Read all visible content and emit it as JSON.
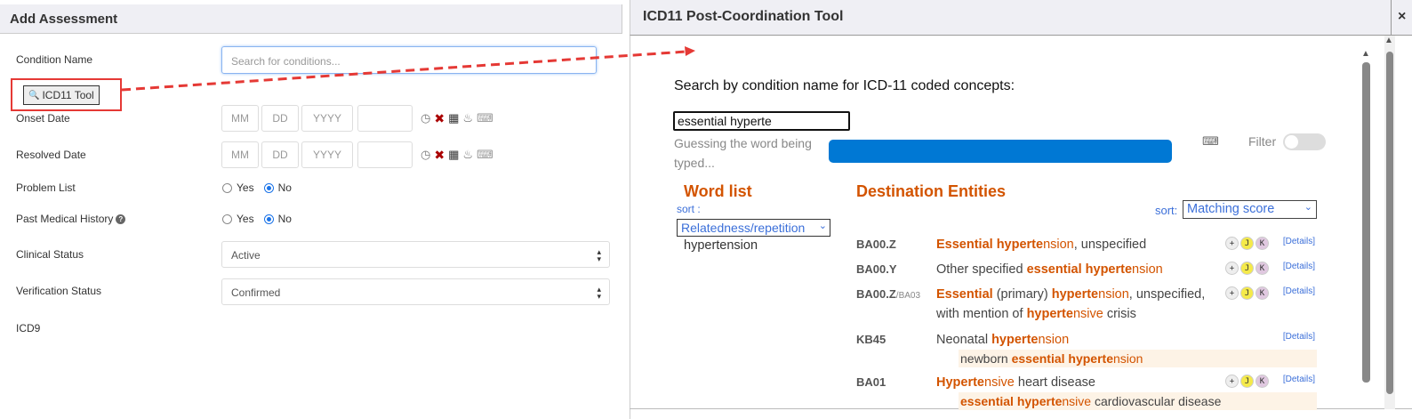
{
  "left_panel": {
    "title": "Add Assessment",
    "condition_label": "Condition Name",
    "condition_placeholder": "Search for conditions...",
    "icd11_button": "ICD11 Tool",
    "onset_label": "Onset Date",
    "resolved_label": "Resolved Date",
    "date_placeholders": {
      "mm": "MM",
      "dd": "DD",
      "yyyy": "YYYY"
    },
    "problem_list_label": "Problem List",
    "pmh_label": "Past Medical History",
    "yes": "Yes",
    "no": "No",
    "problem_list_value": "No",
    "pmh_value": "No",
    "clinical_status_label": "Clinical Status",
    "clinical_status_value": "Active",
    "verification_label": "Verification Status",
    "verification_value": "Confirmed",
    "icd9_label": "ICD9"
  },
  "right_panel": {
    "title": "ICD11 Post-Coordination Tool",
    "close": "×",
    "prompt": "Search by condition name for ICD-11 coded concepts:",
    "search_value": "essential hyperte",
    "guess_text": "Guessing the word being typed...",
    "filter_label": "Filter",
    "filter_on": false,
    "progress_color": "#0078d4",
    "word_list_heading": "Word list",
    "word_sort_label": "sort :",
    "word_sort_value": "Relatedness/repetition",
    "words": [
      "hypertension"
    ],
    "dest_heading": "Destination Entities",
    "dest_sort_label": "sort:",
    "dest_sort_value": "Matching score",
    "details_label": "[Details]",
    "results": [
      {
        "code": "BA00.Z",
        "code_suffix": "",
        "title": [
          [
            "b",
            "Essential hyperte"
          ],
          [
            "o",
            "nsion"
          ],
          [
            "p",
            ", unspecified"
          ]
        ],
        "buttons": true,
        "synonym": null
      },
      {
        "code": "BA00.Y",
        "code_suffix": "",
        "title": [
          [
            "p",
            "Other specified "
          ],
          [
            "b",
            "essential hyperte"
          ],
          [
            "o",
            "nsion"
          ]
        ],
        "buttons": true,
        "synonym": null
      },
      {
        "code": "BA00.Z",
        "code_suffix": "/BA03",
        "title": [
          [
            "b",
            "Essential"
          ],
          [
            "p",
            " (primary) "
          ],
          [
            "b",
            "hyperte"
          ],
          [
            "o",
            "nsion"
          ],
          [
            "p",
            ", unspecified, with mention of "
          ],
          [
            "b",
            "hyperte"
          ],
          [
            "o",
            "nsive"
          ],
          [
            "p",
            " crisis"
          ]
        ],
        "buttons": true,
        "synonym": null
      },
      {
        "code": "KB45",
        "code_suffix": "",
        "title": [
          [
            "p",
            "Neonatal "
          ],
          [
            "b",
            "hyperte"
          ],
          [
            "o",
            "nsion"
          ]
        ],
        "buttons": false,
        "synonym": [
          [
            "p",
            "newborn "
          ],
          [
            "b",
            "essential hyperte"
          ],
          [
            "o",
            "nsion"
          ]
        ]
      },
      {
        "code": "BA01",
        "code_suffix": "",
        "title": [
          [
            "b",
            "Hyperte"
          ],
          [
            "o",
            "nsive"
          ],
          [
            "p",
            " heart disease"
          ]
        ],
        "buttons": true,
        "synonym": [
          [
            "b",
            "essential hyperte"
          ],
          [
            "o",
            "nsive"
          ],
          [
            "p",
            " cardiovascular disease"
          ]
        ]
      }
    ]
  },
  "colors": {
    "accent_orange": "#d35400",
    "link_blue": "#3b6fd9",
    "annotation_red": "#e53935"
  }
}
